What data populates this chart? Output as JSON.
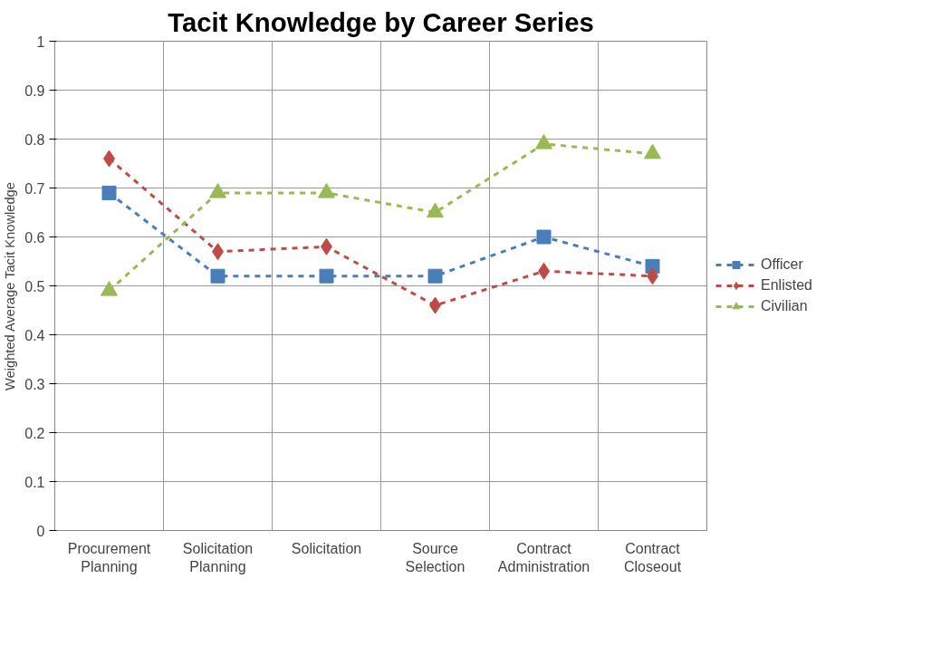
{
  "chart_data": {
    "type": "line",
    "title": "Tacit Knowledge by Career Series",
    "ylabel": "Weighted Average Tacit Knowledge",
    "categories": [
      "Procurement Planning",
      "Solicitation Planning",
      "Solicitation",
      "Source Selection",
      "Contract Administration",
      "Contract Closeout"
    ],
    "series": [
      {
        "name": "Officer",
        "color": "#4a7ebb",
        "marker": "square",
        "values": [
          0.69,
          0.52,
          0.52,
          0.52,
          0.6,
          0.54
        ]
      },
      {
        "name": "Enlisted",
        "color": "#be4b48",
        "marker": "diamond",
        "values": [
          0.76,
          0.57,
          0.58,
          0.46,
          0.53,
          0.52
        ]
      },
      {
        "name": "Civilian",
        "color": "#98b954",
        "marker": "triangle",
        "values": [
          0.49,
          0.69,
          0.69,
          0.65,
          0.79,
          0.77
        ]
      }
    ],
    "ylim": [
      0,
      1
    ],
    "yticks": [
      0,
      0.1,
      0.2,
      0.3,
      0.4,
      0.5,
      0.6,
      0.7,
      0.8,
      0.9,
      1
    ],
    "grid": true,
    "legend": "right",
    "line_style": "dashed"
  }
}
